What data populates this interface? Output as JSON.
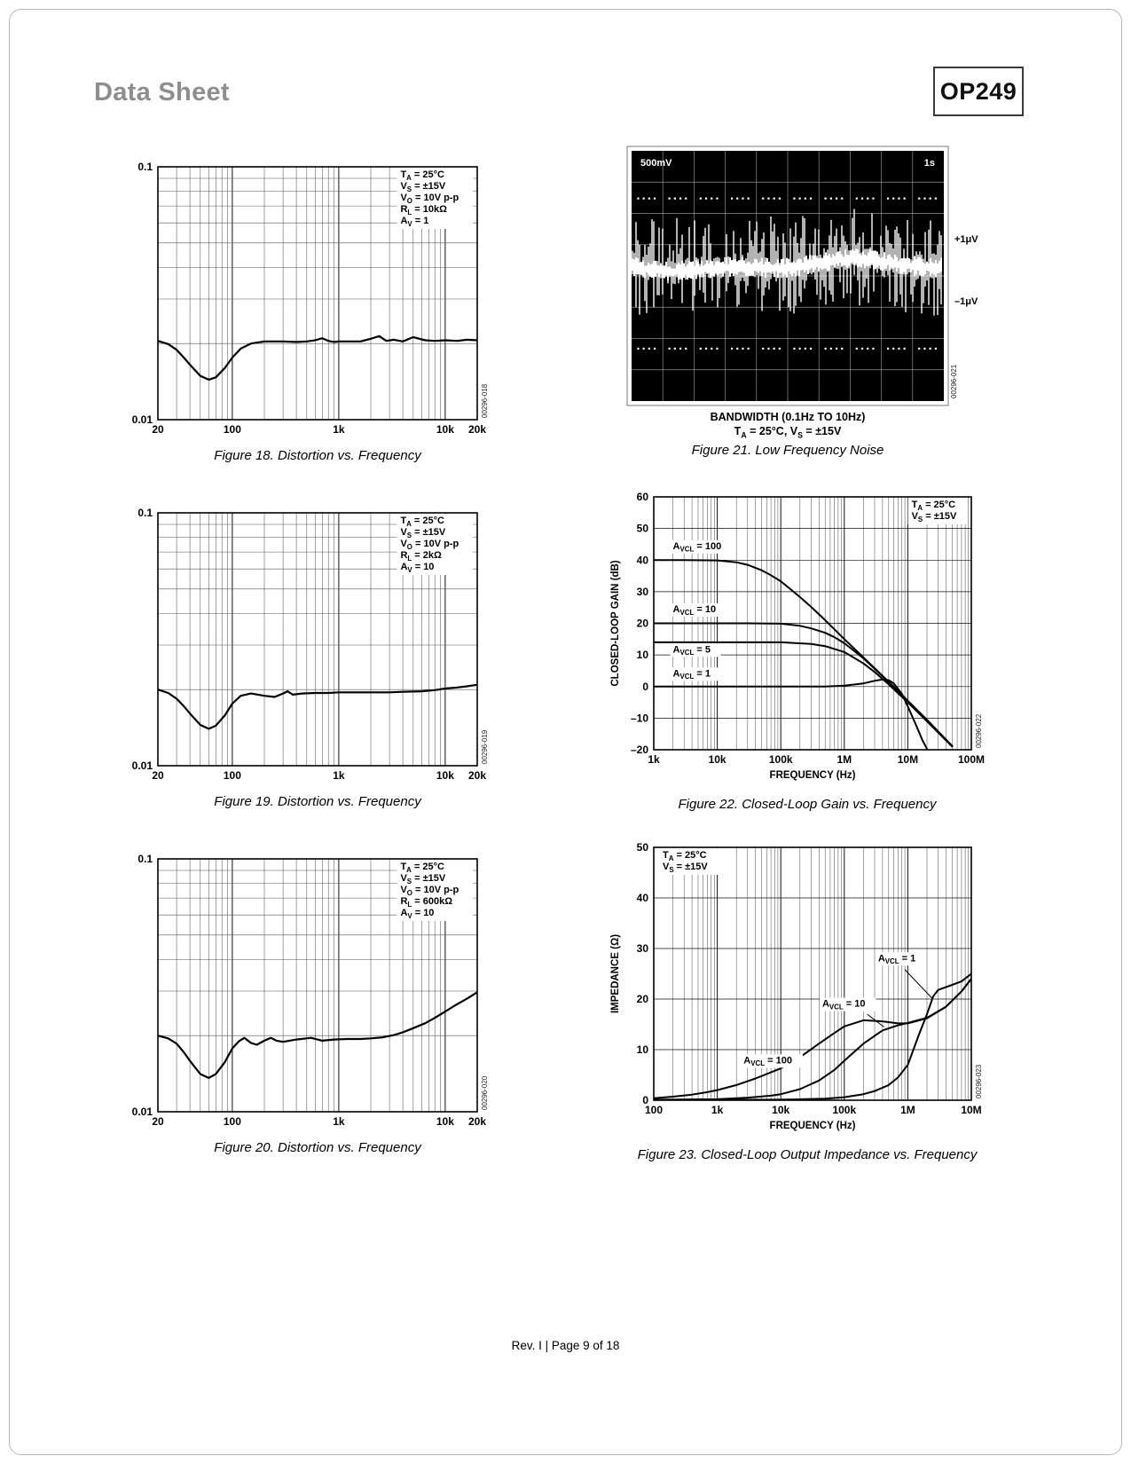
{
  "page": {
    "header_left": "Data Sheet",
    "header_right": "OP249",
    "footer": "Rev. I | Page 9 of 18"
  },
  "figures": {
    "fig18": {
      "caption": "Figure 18. Distortion vs. Frequency"
    },
    "fig19": {
      "caption": "Figure 19. Distortion vs. Frequency"
    },
    "fig20": {
      "caption": "Figure 20. Distortion vs. Frequency"
    },
    "fig21": {
      "caption": "Figure 21. Low Frequency Noise",
      "scope": {
        "vdiv": "500mV",
        "tdiv": "1s",
        "label_plus": "+1μV",
        "label_minus": "–1μV",
        "bandwidth_line": "BANDWIDTH (0.1Hz TO 10Hz)",
        "conditions_line": "T[A] = 25°C, V[S] = ±15V",
        "watermark": "00296-021"
      }
    },
    "fig22": {
      "caption": "Figure 22. Closed-Loop Gain vs. Frequency"
    },
    "fig23": {
      "caption": "Figure 23. Closed-Loop Output Impedance vs. Frequency"
    }
  },
  "chart_data": [
    {
      "id": "fig18",
      "type": "line",
      "xscale": "log",
      "xlim": [
        20,
        20000
      ],
      "yscale": "log",
      "ylim": [
        0.01,
        0.1
      ],
      "xticks": [
        [
          20,
          "20"
        ],
        [
          100,
          "100"
        ],
        [
          1000,
          "1k"
        ],
        [
          10000,
          "10k"
        ],
        [
          20000,
          "20k"
        ]
      ],
      "yticks": [
        [
          0.1,
          "0.1"
        ],
        [
          0.01,
          "0.01"
        ]
      ],
      "xlabel": "",
      "ylabel": "",
      "annotation": {
        "pos": "top-right",
        "lines": [
          "T[A] = 25°C",
          "V[S] = ±15V",
          "V[O] = 10V p-p",
          "R[L] = 10kΩ",
          "A[V] = 1"
        ]
      },
      "watermark": "00296-018",
      "series": [
        {
          "name": "distortion",
          "x": [
            20,
            25,
            30,
            35,
            40,
            50,
            60,
            70,
            85,
            100,
            120,
            150,
            200,
            300,
            400,
            500,
            600,
            700,
            800,
            900,
            1000,
            1300,
            1600,
            2000,
            2400,
            2800,
            3300,
            4000,
            5000,
            6500,
            8000,
            10000,
            13000,
            16000,
            20000
          ],
          "y": [
            0.0205,
            0.0199,
            0.0189,
            0.0176,
            0.0165,
            0.0149,
            0.0144,
            0.0147,
            0.016,
            0.0176,
            0.0191,
            0.02,
            0.0204,
            0.0204,
            0.0203,
            0.0204,
            0.0206,
            0.021,
            0.0205,
            0.0203,
            0.0204,
            0.0204,
            0.0204,
            0.0209,
            0.0214,
            0.0205,
            0.0207,
            0.0204,
            0.0212,
            0.0206,
            0.0205,
            0.0206,
            0.0205,
            0.0207,
            0.0206
          ]
        }
      ]
    },
    {
      "id": "fig19",
      "type": "line",
      "xscale": "log",
      "xlim": [
        20,
        20000
      ],
      "yscale": "log",
      "ylim": [
        0.01,
        0.1
      ],
      "xticks": [
        [
          20,
          "20"
        ],
        [
          100,
          "100"
        ],
        [
          1000,
          "1k"
        ],
        [
          10000,
          "10k"
        ],
        [
          20000,
          "20k"
        ]
      ],
      "yticks": [
        [
          0.1,
          "0.1"
        ],
        [
          0.01,
          "0.01"
        ]
      ],
      "xlabel": "",
      "ylabel": "",
      "annotation": {
        "pos": "top-right",
        "lines": [
          "T[A] = 25°C",
          "V[S] = ±15V",
          "V[O] = 10V p-p",
          "R[L] = 2kΩ",
          "A[V] = 10"
        ]
      },
      "watermark": "00296-019",
      "series": [
        {
          "name": "distortion",
          "x": [
            20,
            25,
            30,
            35,
            40,
            50,
            60,
            70,
            85,
            100,
            120,
            150,
            200,
            250,
            300,
            330,
            370,
            450,
            600,
            800,
            1000,
            1500,
            2000,
            3000,
            4000,
            6000,
            8000,
            10000,
            13000,
            16000,
            20000
          ],
          "y": [
            0.02,
            0.0194,
            0.0184,
            0.0172,
            0.0161,
            0.0145,
            0.014,
            0.0144,
            0.0158,
            0.0176,
            0.0189,
            0.0193,
            0.0189,
            0.0187,
            0.0193,
            0.0197,
            0.0191,
            0.0193,
            0.0194,
            0.0194,
            0.0195,
            0.0195,
            0.0195,
            0.0195,
            0.0196,
            0.0197,
            0.0199,
            0.0202,
            0.0204,
            0.0206,
            0.0209
          ]
        }
      ]
    },
    {
      "id": "fig20",
      "type": "line",
      "xscale": "log",
      "xlim": [
        20,
        20000
      ],
      "yscale": "log",
      "ylim": [
        0.01,
        0.1
      ],
      "xticks": [
        [
          20,
          "20"
        ],
        [
          100,
          "100"
        ],
        [
          1000,
          "1k"
        ],
        [
          10000,
          "10k"
        ],
        [
          20000,
          "20k"
        ]
      ],
      "yticks": [
        [
          0.1,
          "0.1"
        ],
        [
          0.01,
          "0.01"
        ]
      ],
      "xlabel": "",
      "ylabel": "",
      "annotation": {
        "pos": "top-right",
        "lines": [
          "T[A] = 25°C",
          "V[S] = ±15V",
          "V[O] = 10V p-p",
          "R[L] = 600kΩ",
          "A[V] = 10"
        ]
      },
      "watermark": "00296-020",
      "series": [
        {
          "name": "distortion",
          "x": [
            20,
            25,
            30,
            35,
            40,
            50,
            60,
            70,
            85,
            100,
            115,
            130,
            150,
            170,
            200,
            230,
            260,
            300,
            400,
            550,
            700,
            900,
            1200,
            1600,
            2000,
            2600,
            3300,
            4000,
            5000,
            6500,
            8000,
            10000,
            12500,
            16000,
            20000
          ],
          "y": [
            0.02,
            0.0195,
            0.0186,
            0.0172,
            0.0159,
            0.0141,
            0.0136,
            0.0141,
            0.0157,
            0.0178,
            0.019,
            0.0196,
            0.0187,
            0.0184,
            0.0191,
            0.0196,
            0.0191,
            0.0189,
            0.0193,
            0.0196,
            0.0191,
            0.0193,
            0.0194,
            0.0194,
            0.0195,
            0.0197,
            0.0201,
            0.0206,
            0.0214,
            0.0224,
            0.0235,
            0.0249,
            0.0264,
            0.028,
            0.0297
          ]
        }
      ]
    },
    {
      "id": "fig22",
      "type": "line",
      "xscale": "log",
      "xlim": [
        1000,
        100000000
      ],
      "yscale": "linear",
      "ylim": [
        -20,
        60
      ],
      "xticks": [
        [
          1000,
          "1k"
        ],
        [
          10000,
          "10k"
        ],
        [
          100000,
          "100k"
        ],
        [
          1000000,
          "1M"
        ],
        [
          10000000,
          "10M"
        ],
        [
          100000000,
          "100M"
        ]
      ],
      "yticks": [
        [
          60,
          "60"
        ],
        [
          50,
          "50"
        ],
        [
          40,
          "40"
        ],
        [
          30,
          "30"
        ],
        [
          20,
          "20"
        ],
        [
          10,
          "10"
        ],
        [
          0,
          "0"
        ],
        [
          -10,
          "–10"
        ],
        [
          -20,
          "–20"
        ]
      ],
      "xlabel": "FREQUENCY (Hz)",
      "ylabel": "CLOSED-LOOP GAIN (dB)",
      "annotation": {
        "pos": "top-right",
        "lines": [
          "T[A] = 25°C",
          "V[S] = ±15V"
        ]
      },
      "watermark": "00296-022",
      "series": [
        {
          "name": "AVCL = 100",
          "label": {
            "text": "A[VCL] = 100",
            "x": 2000,
            "y": 43.5
          },
          "x": [
            1000,
            3000,
            10000,
            20000,
            30000,
            50000,
            70000,
            100000,
            200000,
            300000,
            500000,
            1000000,
            2000000,
            3000000,
            5000000,
            10000000,
            20000000,
            30000000,
            50000000
          ],
          "y": [
            40,
            40,
            39.9,
            39.3,
            38.5,
            36.8,
            35.2,
            33.3,
            28.3,
            25.2,
            21,
            15,
            9.2,
            5.8,
            1.5,
            -4.5,
            -10.5,
            -14.2,
            -18.8
          ]
        },
        {
          "name": "AVCL = 10",
          "label": {
            "text": "A[VCL] = 10",
            "x": 2000,
            "y": 23.5
          },
          "x": [
            1000,
            30000,
            100000,
            200000,
            300000,
            500000,
            700000,
            1000000,
            2000000,
            3000000,
            5000000,
            10000000,
            20000000,
            50000000
          ],
          "y": [
            20,
            20,
            19.9,
            19.2,
            18.4,
            17,
            15.6,
            13.7,
            8.9,
            5.6,
            1.4,
            -4.6,
            -10.7,
            -18.9
          ]
        },
        {
          "name": "AVCL = 5",
          "label": {
            "text": "A[VCL] = 5",
            "x": 2000,
            "y": 10.8
          },
          "x": [
            1000,
            100000,
            300000,
            500000,
            1000000,
            2000000,
            3000000,
            5000000,
            10000000,
            20000000,
            50000000
          ],
          "y": [
            14,
            14,
            13.5,
            12.8,
            10.9,
            7.3,
            4.6,
            0.7,
            -5,
            -11,
            -19
          ]
        },
        {
          "name": "AVCL = 1",
          "label": {
            "text": "A[VCL] = 1",
            "x": 2000,
            "y": 3.2
          },
          "x": [
            1000,
            500000,
            1000000,
            2000000,
            3000000,
            4000000,
            5000000,
            6000000,
            8000000,
            10000000,
            13000000,
            17000000,
            21000000
          ],
          "y": [
            0,
            0,
            0.3,
            1,
            1.8,
            2.2,
            2,
            1,
            -2.2,
            -6.3,
            -11.5,
            -17,
            -20.5
          ]
        }
      ]
    },
    {
      "id": "fig23",
      "type": "line",
      "xscale": "log",
      "xlim": [
        100,
        10000000
      ],
      "yscale": "linear",
      "ylim": [
        0,
        50
      ],
      "xticks": [
        [
          100,
          "100"
        ],
        [
          1000,
          "1k"
        ],
        [
          10000,
          "10k"
        ],
        [
          100000,
          "100k"
        ],
        [
          1000000,
          "1M"
        ],
        [
          10000000,
          "10M"
        ]
      ],
      "yticks": [
        [
          50,
          "50"
        ],
        [
          40,
          "40"
        ],
        [
          30,
          "30"
        ],
        [
          20,
          "20"
        ],
        [
          10,
          "10"
        ],
        [
          0,
          "0"
        ]
      ],
      "xlabel": "FREQUENCY (Hz)",
      "ylabel": "IMPEDANCE (Ω)",
      "annotation": {
        "pos": "top-left",
        "lines": [
          "T[A] = 25°C",
          "V[S] = ±15V"
        ]
      },
      "watermark": "00296-023",
      "series": [
        {
          "name": "AVCL = 100",
          "label": {
            "text": "A[VCL] = 100",
            "x": 2600,
            "y": 7.3
          },
          "x": [
            100,
            200,
            400,
            700,
            1000,
            2000,
            4000,
            7000,
            10000,
            20000,
            40000,
            70000,
            100000,
            200000,
            400000,
            700000,
            1000000,
            2000000,
            4000000,
            7000000,
            10000000
          ],
          "y": [
            0.4,
            0.7,
            1.1,
            1.6,
            2,
            3,
            4.3,
            5.5,
            6.3,
            8.5,
            11.2,
            13.3,
            14.6,
            15.8,
            15.6,
            15.2,
            15.2,
            16.2,
            18.5,
            21.5,
            24
          ]
        },
        {
          "name": "AVCL = 10",
          "label": {
            "text": "A[VCL] = 10",
            "x": 45000,
            "y": 18.5,
            "leader": [
              [
                230000,
                17
              ],
              [
                420000,
                14.5
              ]
            ]
          },
          "x": [
            100,
            1000,
            3000,
            7000,
            10000,
            20000,
            40000,
            70000,
            100000,
            200000,
            400000,
            700000,
            1000000,
            2000000,
            4000000,
            7000000,
            10000000
          ],
          "y": [
            0.1,
            0.2,
            0.5,
            0.9,
            1.2,
            2.2,
            3.9,
            6,
            7.8,
            11.2,
            13.8,
            14.8,
            15.3,
            16.3,
            18.5,
            21.5,
            24
          ]
        },
        {
          "name": "AVCL = 1",
          "label": {
            "text": "A[VCL] = 1",
            "x": 340000,
            "y": 27.5,
            "leader": [
              [
                900000,
                25.8
              ],
              [
                2400000,
                20.2
              ]
            ]
          },
          "x": [
            100,
            10000,
            50000,
            100000,
            200000,
            300000,
            500000,
            700000,
            1000000,
            1500000,
            2000000,
            2500000,
            3000000,
            5000000,
            7000000,
            10000000
          ],
          "y": [
            0.05,
            0.1,
            0.3,
            0.6,
            1.2,
            1.8,
            3,
            4.5,
            7,
            13,
            17,
            20.5,
            21.8,
            22.8,
            23.5,
            25
          ]
        }
      ]
    }
  ]
}
